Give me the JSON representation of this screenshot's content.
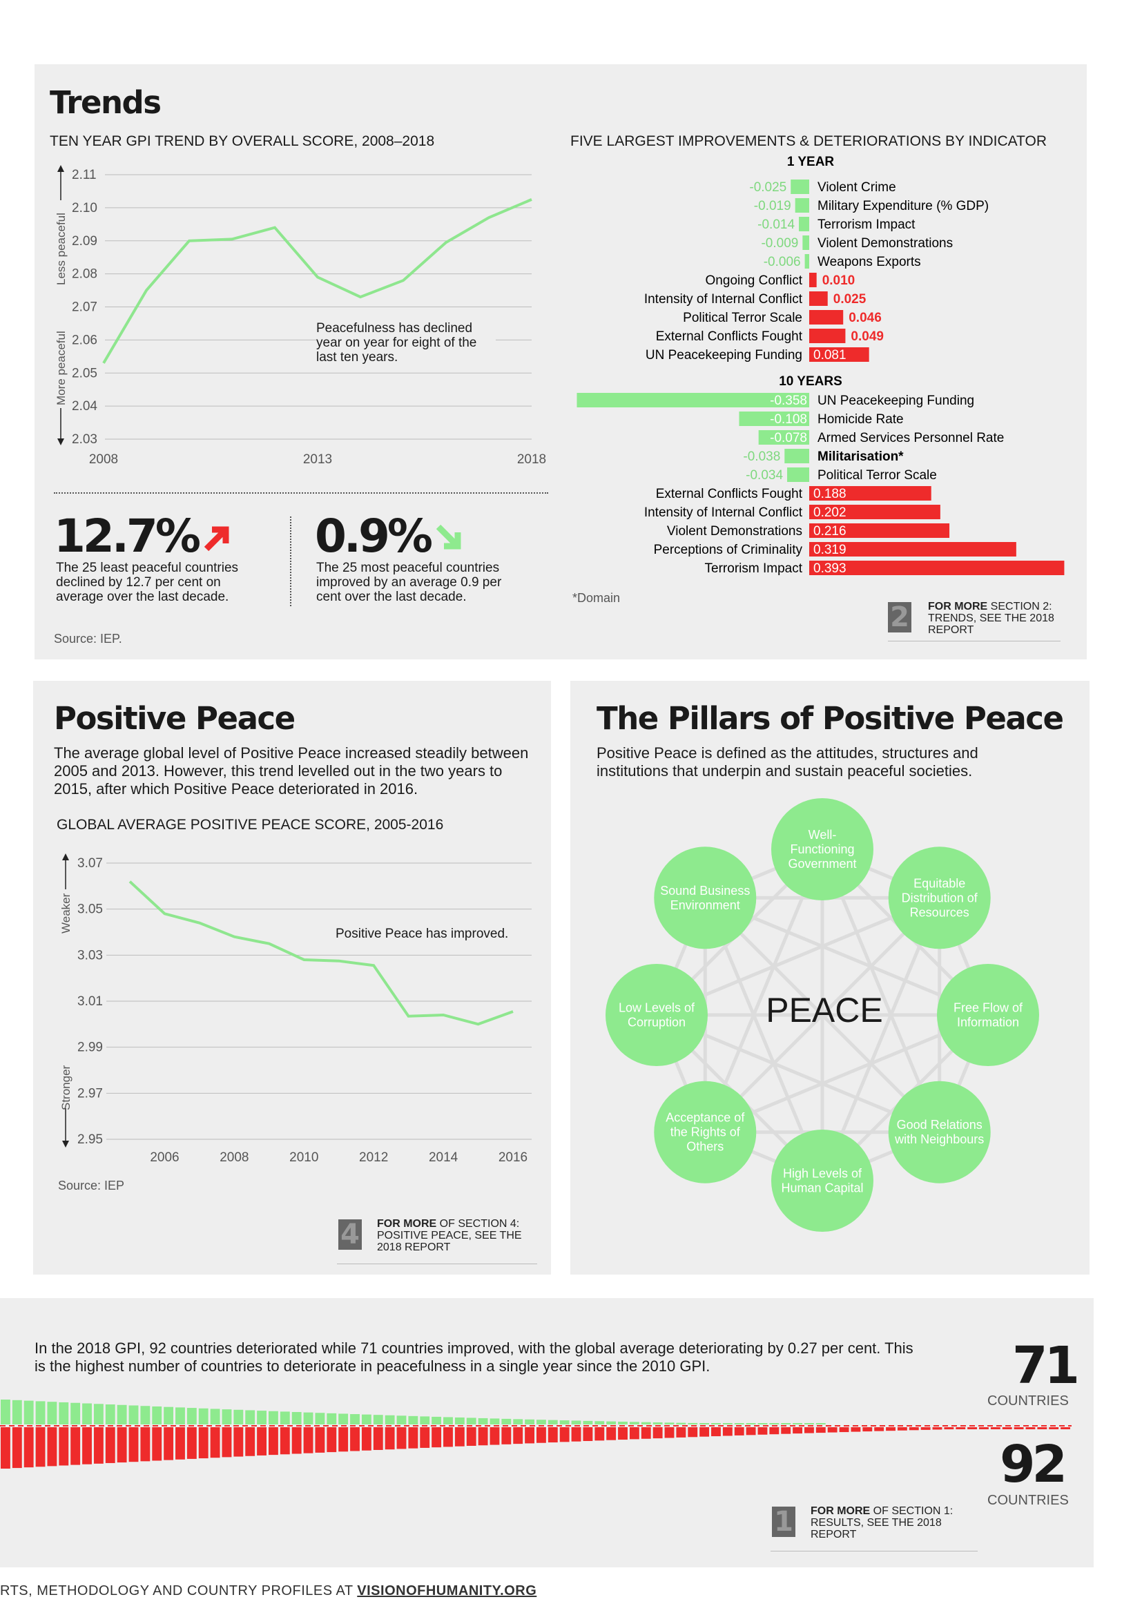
{
  "trends": {
    "title": "Trends",
    "left_chart_title": "TEN YEAR GPI TREND BY OVERALL SCORE, 2008–2018",
    "right_chart_title": "FIVE LARGEST IMPROVEMENTS & DETERIORATIONS BY INDICATOR",
    "axis_less": "Less peaceful",
    "axis_more": "More peaceful",
    "annotation": "Peacefulness has declined year on year for eight of the last ten years.",
    "stat1": {
      "value": "12.7%",
      "text": "The 25 least peaceful countries declined by 12.7 per cent on average over the last decade."
    },
    "stat2": {
      "value": "0.9%",
      "text": "The 25 most peaceful countries improved by an average 0.9 per cent over the last decade."
    },
    "source": "Source: IEP.",
    "one_year_header": "1 YEAR",
    "ten_year_header": "10 YEARS",
    "domain_note": "*Domain",
    "for_more": {
      "number": "2",
      "bold": "FOR MORE",
      "rest": " SECTION 2: TRENDS, SEE THE 2018 REPORT"
    }
  },
  "positive_peace": {
    "title": "Positive Peace",
    "intro": "The average global level of Positive Peace increased steadily between 2005 and 2013. However, this trend levelled out in the two years to 2015, after which Positive Peace deteriorated in 2016.",
    "chart_title": "GLOBAL AVERAGE POSITIVE PEACE SCORE, 2005-2016",
    "axis_weaker": "Weaker",
    "axis_stronger": "Stronger",
    "annotation": "Positive Peace has improved.",
    "source": "Source: IEP",
    "for_more": {
      "number": "4",
      "bold": "FOR MORE",
      "rest": " OF SECTION 4: POSITIVE PEACE, SEE THE 2018 REPORT"
    }
  },
  "pillars": {
    "title": "The Pillars of Positive Peace",
    "intro": "Positive Peace is defined as the attitudes, structures and institutions that underpin and sustain peaceful societies.",
    "center": "PEACE",
    "items": [
      "Well-Functioning Government",
      "Equitable Distribution of Resources",
      "Free Flow of Information",
      "Good Relations with Neighbours",
      "High Levels of Human Capital",
      "Acceptance of the Rights of Others",
      "Low Levels of Corruption",
      "Sound Business Environment"
    ]
  },
  "results": {
    "text": "In the 2018 GPI, 92 countries deteriorated while 71 countries improved, with the global average deteriorating by 0.27 per cent. This is the highest number of countries to deteriorate in peacefulness in a single year since the 2010 GPI.",
    "improved_count": "71",
    "improved_label": "COUNTRIES",
    "deteriorated_count": "92",
    "deteriorated_label": "COUNTRIES",
    "for_more": {
      "number": "1",
      "bold": "FOR MORE",
      "rest": " OF SECTION 1: RESULTS, SEE THE 2018 REPORT"
    }
  },
  "footer": {
    "prefix": "RTS, METHODOLOGY AND COUNTRY PROFILES AT ",
    "link": "VISIONOFHUMANITY.ORG"
  },
  "colors": {
    "green": "#8eea8e",
    "red": "#ee2b2b",
    "panel": "#eeeeee",
    "line_green": "#8ee68e"
  },
  "chart_data": [
    {
      "type": "line",
      "title": "TEN YEAR GPI TREND BY OVERALL SCORE, 2008–2018",
      "x": [
        2008,
        2009,
        2010,
        2011,
        2012,
        2013,
        2014,
        2015,
        2016,
        2017,
        2018
      ],
      "x_ticks": [
        "2008",
        "2013",
        "2018"
      ],
      "values": [
        2.053,
        2.075,
        2.09,
        2.0905,
        2.094,
        2.079,
        2.073,
        2.078,
        2.0895,
        2.097,
        2.1025
      ],
      "y_ticks": [
        "2.11",
        "2.10",
        "2.09",
        "2.08",
        "2.07",
        "2.06",
        "2.05",
        "2.04",
        "2.03"
      ],
      "ylim": [
        2.03,
        2.11
      ],
      "grid": true
    },
    {
      "type": "bar",
      "title": "1 YEAR",
      "categories": [
        "Violent Crime",
        "Military Expenditure (% GDP)",
        "Terrorism Impact",
        "Violent Demonstrations",
        "Weapons Exports",
        "Ongoing Conflict",
        "Intensity of Internal Conflict",
        "Political Terror Scale",
        "External Conflicts Fought",
        "UN Peacekeeping Funding"
      ],
      "values": [
        -0.025,
        -0.019,
        -0.014,
        -0.009,
        -0.006,
        0.01,
        0.025,
        0.046,
        0.049,
        0.081
      ],
      "labels": [
        "-0.025",
        "-0.019",
        "-0.014",
        "-0.009",
        "-0.006",
        "0.010",
        "0.025",
        "0.046",
        "0.049",
        "0.081"
      ]
    },
    {
      "type": "bar",
      "title": "10 YEARS",
      "categories": [
        "UN Peacekeeping Funding",
        "Homicide Rate",
        "Armed Services Personnel Rate",
        "Militarisation*",
        "Political Terror Scale",
        "External Conflicts Fought",
        "Intensity of Internal Conflict",
        "Violent Demonstrations",
        "Perceptions of Criminality",
        "Terrorism Impact"
      ],
      "values": [
        -0.358,
        -0.108,
        -0.078,
        -0.038,
        -0.034,
        0.188,
        0.202,
        0.216,
        0.319,
        0.393
      ],
      "labels": [
        "-0.358",
        "-0.108",
        "-0.078",
        "-0.038",
        "-0.034",
        "0.188",
        "0.202",
        "0.216",
        "0.319",
        "0.393"
      ],
      "bold_categories": [
        "Militarisation*"
      ]
    },
    {
      "type": "line",
      "title": "GLOBAL AVERAGE POSITIVE PEACE SCORE, 2005-2016",
      "x": [
        2005,
        2006,
        2007,
        2008,
        2009,
        2010,
        2011,
        2012,
        2013,
        2014,
        2015,
        2016
      ],
      "x_ticks": [
        "2006",
        "2008",
        "2010",
        "2012",
        "2014",
        "2016"
      ],
      "values": [
        3.062,
        3.048,
        3.044,
        3.038,
        3.035,
        3.028,
        3.0275,
        3.0255,
        3.0035,
        3.004,
        3.0,
        3.0055
      ],
      "y_ticks": [
        "3.07",
        "3.05",
        "3.03",
        "3.01",
        "2.99",
        "2.97",
        "2.95"
      ],
      "ylim": [
        2.95,
        3.07
      ],
      "grid": true
    }
  ]
}
